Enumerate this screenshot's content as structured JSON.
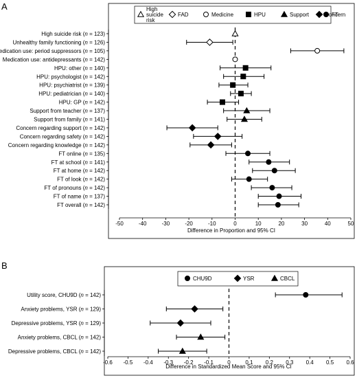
{
  "chart_data": [
    {
      "panel_label": "A",
      "type": "scatter",
      "subtype": "forest-plot",
      "xlabel": "Difference in Proportion and 95% CI",
      "xlim": [
        -50,
        50
      ],
      "xticks": [
        "-50",
        "-40",
        "-30",
        "-20",
        "-10",
        "0",
        "10",
        "20",
        "30",
        "40",
        "50"
      ],
      "reference_line": 0,
      "reference_line_style": "dashed",
      "legend": {
        "position": "top",
        "entries": [
          {
            "name": "High suicide risk",
            "lines": [
              "High",
              "suicide",
              "risk"
            ],
            "marker": "triangle-open"
          },
          {
            "name": "FAD",
            "lines": [
              "FAD"
            ],
            "marker": "diamond-open"
          },
          {
            "name": "Medicine",
            "lines": [
              "Medicine"
            ],
            "marker": "circle-open"
          },
          {
            "name": "HPU",
            "lines": [
              "HPU"
            ],
            "marker": "square"
          },
          {
            "name": "Support",
            "lines": [
              "Support"
            ],
            "marker": "triangle"
          },
          {
            "name": "Concern",
            "lines": [
              "Concern"
            ],
            "marker": "diamond"
          },
          {
            "name": "FT",
            "lines": [
              "FT"
            ],
            "marker": "circle"
          }
        ]
      },
      "rows": [
        {
          "name": "High suicide risk",
          "n": "123",
          "est": 0,
          "lo": 0,
          "hi": 0,
          "marker": "triangle-open"
        },
        {
          "name": "Unhealthy family functioning",
          "n": "126",
          "est": -11,
          "lo": -21,
          "hi": -1,
          "marker": "diamond-open"
        },
        {
          "name": "Medication use: period suppressors",
          "n": "105",
          "est": 35.5,
          "lo": 24,
          "hi": 47,
          "marker": "circle-open"
        },
        {
          "name": "Medication use: antidepressants",
          "n": "142",
          "est": 0,
          "lo": 0,
          "hi": 0,
          "marker": "circle-open"
        },
        {
          "name": "HPU: other",
          "n": "140",
          "est": 4.5,
          "lo": -6.5,
          "hi": 15.5,
          "marker": "square"
        },
        {
          "name": "HPU: psychologist",
          "n": "142",
          "est": 3.5,
          "lo": -5,
          "hi": 12.5,
          "marker": "square"
        },
        {
          "name": "HPU: psychiatrist",
          "n": "139",
          "est": -1,
          "lo": -7,
          "hi": 5.5,
          "marker": "square"
        },
        {
          "name": "HPU: pediatrician",
          "n": "140",
          "est": 2.5,
          "lo": -2,
          "hi": 7,
          "marker": "square"
        },
        {
          "name": "HPU: GP",
          "n": "142",
          "est": -5.5,
          "lo": -12,
          "hi": 1.5,
          "marker": "square"
        },
        {
          "name": "Support from teacher",
          "n": "137",
          "est": 5,
          "lo": -5,
          "hi": 15,
          "marker": "triangle"
        },
        {
          "name": "Support from family",
          "n": "141",
          "est": 4,
          "lo": -3.5,
          "hi": 11.5,
          "marker": "triangle"
        },
        {
          "name": "Concern regarding support",
          "n": "142",
          "est": -18.5,
          "lo": -29.5,
          "hi": -7.5,
          "marker": "diamond"
        },
        {
          "name": "Concern regarding safety",
          "n": "142",
          "est": -7.5,
          "lo": -18,
          "hi": 3,
          "marker": "diamond"
        },
        {
          "name": "Concern regarding knowledge",
          "n": "142",
          "est": -10.5,
          "lo": -19.5,
          "hi": -1.5,
          "marker": "diamond"
        },
        {
          "name": "FT online",
          "n": "135",
          "est": 5.5,
          "lo": -4,
          "hi": 15,
          "marker": "circle"
        },
        {
          "name": "FT at school",
          "n": "141",
          "est": 14.5,
          "lo": 6,
          "hi": 23.5,
          "marker": "circle"
        },
        {
          "name": "FT at home",
          "n": "142",
          "est": 17,
          "lo": 7.5,
          "hi": 26,
          "marker": "circle"
        },
        {
          "name": "FT of look",
          "n": "142",
          "est": 6,
          "lo": -1.5,
          "hi": 14,
          "marker": "circle"
        },
        {
          "name": "FT of pronouns",
          "n": "142",
          "est": 16,
          "lo": 7,
          "hi": 24.5,
          "marker": "circle"
        },
        {
          "name": "FT of name",
          "n": "137",
          "est": 19,
          "lo": 10,
          "hi": 28.5,
          "marker": "circle"
        },
        {
          "name": "FT overall",
          "n": "142",
          "est": 18.5,
          "lo": 10,
          "hi": 27.5,
          "marker": "circle"
        }
      ]
    },
    {
      "panel_label": "B",
      "type": "scatter",
      "subtype": "forest-plot",
      "xlabel": "Difference in Standardized Mean Score and 95% CI",
      "xlim": [
        -0.6,
        0.6
      ],
      "xticks": [
        "-0.6",
        "-0.5",
        "-0.4",
        "-0.3",
        "-0.2",
        "-0.1",
        "0",
        "0.1",
        "0.2",
        "0.3",
        "0.4",
        "0.5",
        "0.6"
      ],
      "reference_line": 0,
      "reference_line_style": "dashed",
      "legend": {
        "position": "top",
        "entries": [
          {
            "name": "CHU9D",
            "lines": [
              "CHU9D"
            ],
            "marker": "circle"
          },
          {
            "name": "YSR",
            "lines": [
              "YSR"
            ],
            "marker": "diamond"
          },
          {
            "name": "CBCL",
            "lines": [
              "CBCL"
            ],
            "marker": "triangle"
          }
        ]
      },
      "rows": [
        {
          "name": "Utility score, CHU9D",
          "n": "142",
          "est": 0.38,
          "lo": 0.23,
          "hi": 0.56,
          "marker": "circle"
        },
        {
          "name": "Anxiety problems, YSR",
          "n": "129",
          "est": -0.17,
          "lo": -0.31,
          "hi": -0.03,
          "marker": "diamond"
        },
        {
          "name": "Depressive problems, YSR",
          "n": "129",
          "est": -0.24,
          "lo": -0.39,
          "hi": -0.09,
          "marker": "diamond"
        },
        {
          "name": "Anxiety problems, CBCL",
          "n": "142",
          "est": -0.14,
          "lo": -0.26,
          "hi": -0.02,
          "marker": "triangle"
        },
        {
          "name": "Depressive problems, CBCL",
          "n": "142",
          "est": -0.23,
          "lo": -0.35,
          "hi": -0.11,
          "marker": "triangle"
        }
      ]
    }
  ]
}
